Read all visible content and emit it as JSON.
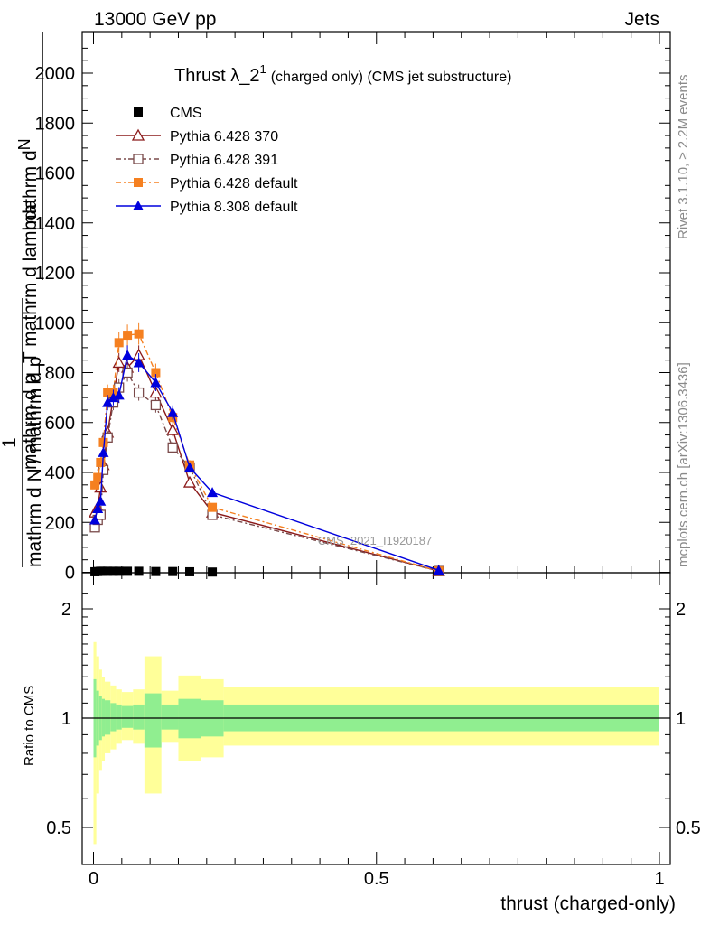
{
  "header": {
    "left_label": "13000 GeV pp",
    "right_label": "Jets"
  },
  "side_labels": {
    "rivet": "Rivet 3.1.10, ≥ 2.2M events",
    "mcplots": "mcplots.cern.ch [arXiv:1306.3436]"
  },
  "watermark": "CMS_2021_I1920187",
  "chart_data": [
    {
      "type": "line",
      "title_main": "Thrust λ_2",
      "title_sup": "1",
      "title_rest": "(charged only) (CMS jet substructure)",
      "ylabel_line1": "mathrm d",
      "ylabel_line1b": "N",
      "ylabel_frac_num": "1",
      "ylabel_frac_den": "mathrm d N / mathrm d p",
      "ylabel_overlay": "mathrm d p_T mathrm d lambda",
      "xlabel": "thrust (charged-only)",
      "xlim": [
        -0.02,
        1.0
      ],
      "ylim": [
        0,
        2150
      ],
      "y_ticks": [
        {
          "v": 0,
          "label": "0"
        },
        {
          "v": 200,
          "label": "200"
        },
        {
          "v": 400,
          "label": "400"
        },
        {
          "v": 600,
          "label": "600"
        },
        {
          "v": 800,
          "label": "800"
        },
        {
          "v": 1000,
          "label": "1000"
        },
        {
          "v": 1200,
          "label": "1200"
        },
        {
          "v": 1400,
          "label": "1400"
        },
        {
          "v": 1600,
          "label": "1600"
        },
        {
          "v": 1800,
          "label": "1800"
        },
        {
          "v": 2000,
          "label": "2000"
        }
      ],
      "legend_position": "top-left",
      "series": [
        {
          "name": "CMS",
          "color": "#000000",
          "marker": "square-filled",
          "dash": "none",
          "x": [
            0.0025,
            0.0075,
            0.0125,
            0.0175,
            0.025,
            0.035,
            0.045,
            0.06,
            0.08,
            0.11,
            0.14,
            0.17,
            0.21
          ],
          "y": [
            2,
            3,
            4,
            4,
            4,
            4,
            4,
            4,
            4,
            3,
            3,
            2,
            1
          ]
        },
        {
          "name": "Pythia 6.428 370",
          "color": "#8b1a1a",
          "marker": "triangle-open",
          "dash": "none",
          "x": [
            0.0025,
            0.0075,
            0.0125,
            0.0175,
            0.025,
            0.035,
            0.045,
            0.06,
            0.08,
            0.11,
            0.14,
            0.17,
            0.21,
            0.61
          ],
          "y": [
            240,
            260,
            340,
            430,
            560,
            700,
            840,
            820,
            870,
            720,
            570,
            360,
            240,
            5
          ]
        },
        {
          "name": "Pythia 6.428 391",
          "color": "#7a4a4a",
          "marker": "square-open",
          "dash": "dashdot",
          "x": [
            0.0025,
            0.0075,
            0.0125,
            0.0175,
            0.025,
            0.035,
            0.045,
            0.06,
            0.08,
            0.11,
            0.14,
            0.17,
            0.21,
            0.61
          ],
          "y": [
            180,
            210,
            230,
            410,
            540,
            680,
            740,
            800,
            720,
            670,
            500,
            420,
            230,
            5
          ]
        },
        {
          "name": "Pythia 6.428 default",
          "color": "#f58020",
          "marker": "square-filled",
          "dash": "dashdot",
          "x": [
            0.0025,
            0.0075,
            0.0125,
            0.0175,
            0.025,
            0.035,
            0.045,
            0.06,
            0.08,
            0.11,
            0.14,
            0.17,
            0.21,
            0.61
          ],
          "y": [
            350,
            380,
            440,
            520,
            720,
            720,
            920,
            950,
            955,
            800,
            620,
            430,
            260,
            5
          ]
        },
        {
          "name": "Pythia 8.308 default",
          "color": "#0000dd",
          "marker": "triangle-filled",
          "dash": "none",
          "x": [
            0.0025,
            0.0075,
            0.0125,
            0.0175,
            0.025,
            0.035,
            0.045,
            0.06,
            0.08,
            0.11,
            0.14,
            0.17,
            0.21,
            0.61
          ],
          "y": [
            210,
            255,
            285,
            480,
            680,
            700,
            710,
            870,
            840,
            760,
            640,
            420,
            320,
            8
          ]
        }
      ]
    },
    {
      "type": "area",
      "ylabel": "Ratio to CMS",
      "xlim": [
        -0.02,
        1.0
      ],
      "ylim": [
        0.35,
        2.4
      ],
      "y_scale": "log",
      "y_ticks": [
        {
          "v": 0.5,
          "label": "0.5"
        },
        {
          "v": 1,
          "label": "1"
        },
        {
          "v": 2,
          "label": "2"
        }
      ],
      "x_ticks": [
        {
          "v": 0,
          "label": "0"
        },
        {
          "v": 0.5,
          "label": "0.5"
        },
        {
          "v": 1,
          "label": "1"
        }
      ],
      "band_colors": {
        "inner": "#90ee90",
        "outer": "#ffff99"
      },
      "bins": [
        {
          "lo": 0.0,
          "hi": 0.005,
          "inner": [
            0.78,
            1.28
          ],
          "outer": [
            0.45,
            1.62
          ]
        },
        {
          "lo": 0.005,
          "hi": 0.01,
          "inner": [
            0.84,
            1.19
          ],
          "outer": [
            0.62,
            1.48
          ]
        },
        {
          "lo": 0.01,
          "hi": 0.015,
          "inner": [
            0.87,
            1.15
          ],
          "outer": [
            0.72,
            1.36
          ]
        },
        {
          "lo": 0.015,
          "hi": 0.02,
          "inner": [
            0.89,
            1.13
          ],
          "outer": [
            0.76,
            1.3
          ]
        },
        {
          "lo": 0.02,
          "hi": 0.03,
          "inner": [
            0.9,
            1.12
          ],
          "outer": [
            0.8,
            1.26
          ]
        },
        {
          "lo": 0.03,
          "hi": 0.04,
          "inner": [
            0.92,
            1.1
          ],
          "outer": [
            0.82,
            1.23
          ]
        },
        {
          "lo": 0.04,
          "hi": 0.05,
          "inner": [
            0.93,
            1.09
          ],
          "outer": [
            0.85,
            1.2
          ]
        },
        {
          "lo": 0.05,
          "hi": 0.07,
          "inner": [
            0.94,
            1.08
          ],
          "outer": [
            0.87,
            1.18
          ]
        },
        {
          "lo": 0.07,
          "hi": 0.09,
          "inner": [
            0.93,
            1.09
          ],
          "outer": [
            0.85,
            1.2
          ]
        },
        {
          "lo": 0.09,
          "hi": 0.12,
          "inner": [
            0.83,
            1.17
          ],
          "outer": [
            0.62,
            1.48
          ]
        },
        {
          "lo": 0.12,
          "hi": 0.15,
          "inner": [
            0.93,
            1.09
          ],
          "outer": [
            0.86,
            1.19
          ]
        },
        {
          "lo": 0.15,
          "hi": 0.19,
          "inner": [
            0.88,
            1.13
          ],
          "outer": [
            0.76,
            1.31
          ]
        },
        {
          "lo": 0.19,
          "hi": 0.23,
          "inner": [
            0.89,
            1.12
          ],
          "outer": [
            0.78,
            1.28
          ]
        },
        {
          "lo": 0.23,
          "hi": 1.0,
          "inner": [
            0.92,
            1.09
          ],
          "outer": [
            0.84,
            1.22
          ]
        }
      ]
    }
  ]
}
